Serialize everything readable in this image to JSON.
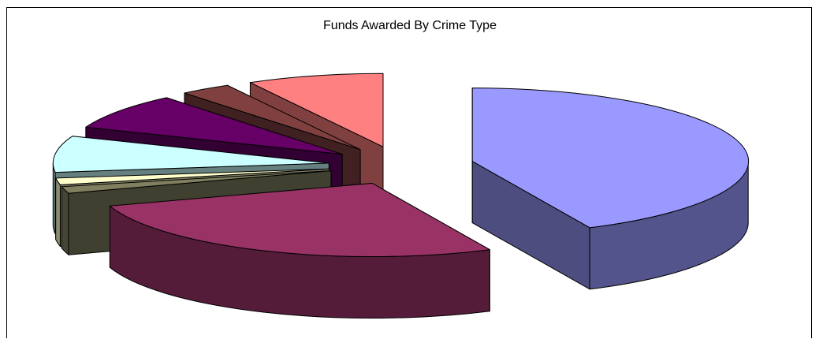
{
  "chart_data": {
    "type": "pie",
    "title": "Funds Awarded By Crime Type",
    "style": "3d-exploded",
    "values": [
      43,
      27,
      1.5,
      1.5,
      8,
      8,
      3,
      8
    ],
    "colors": [
      "#9999ff",
      "#993366",
      "#808060",
      "#ffffcc",
      "#ccffff",
      "#660066",
      "#804040",
      "#ff8080"
    ],
    "legend": "none",
    "grid": false
  }
}
